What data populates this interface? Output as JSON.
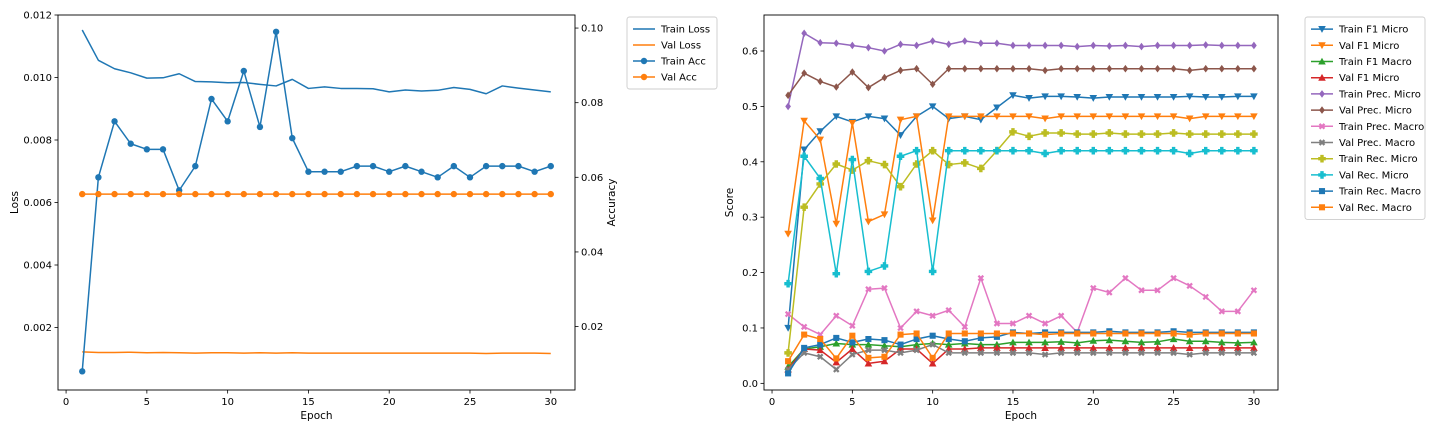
{
  "chart_data": [
    {
      "type": "line",
      "title": "",
      "xlabel": "Epoch",
      "ylabel": "Loss",
      "y2label": "Accuracy",
      "xlim": [
        -0.5,
        31.5
      ],
      "ylim": [
        0,
        0.012
      ],
      "y2lim": [
        0.003,
        0.1035
      ],
      "xticks": [
        0,
        5,
        10,
        15,
        20,
        25,
        30
      ],
      "yticks": [
        0.002,
        0.004,
        0.006,
        0.008,
        0.01,
        0.012
      ],
      "ytick_labels": [
        "0.002",
        "0.004",
        "0.006",
        "0.008",
        "0.010",
        "0.012"
      ],
      "y2ticks": [
        0.02,
        0.04,
        0.06,
        0.08,
        0.1
      ],
      "y2tick_labels": [
        "0.02",
        "0.04",
        "0.06",
        "0.08",
        "0.10"
      ],
      "legend_position": "outside-right",
      "grid": false,
      "x": [
        1,
        2,
        3,
        4,
        5,
        6,
        7,
        8,
        9,
        10,
        11,
        12,
        13,
        14,
        15,
        16,
        17,
        18,
        19,
        20,
        21,
        22,
        23,
        24,
        25,
        26,
        27,
        28,
        29,
        30
      ],
      "series": [
        {
          "name": "Train Loss",
          "axis": "left",
          "color": "#1f77b4",
          "marker": "none",
          "values": [
            0.01152,
            0.01055,
            0.01028,
            0.01015,
            0.00998,
            0.00999,
            0.01012,
            0.00987,
            0.00986,
            0.00983,
            0.00984,
            0.00978,
            0.00973,
            0.00994,
            0.00965,
            0.0097,
            0.00965,
            0.00965,
            0.00964,
            0.00954,
            0.0096,
            0.00957,
            0.00959,
            0.00968,
            0.00962,
            0.00948,
            0.00973,
            0.00966,
            0.0096,
            0.00954
          ]
        },
        {
          "name": "Val Loss",
          "axis": "left",
          "color": "#ff7f0e",
          "marker": "none",
          "values": [
            0.00122,
            0.0012,
            0.0012,
            0.00121,
            0.00119,
            0.0012,
            0.00119,
            0.00118,
            0.00119,
            0.00119,
            0.00118,
            0.00119,
            0.00118,
            0.00119,
            0.00118,
            0.00118,
            0.00118,
            0.00118,
            0.00118,
            0.00118,
            0.00118,
            0.00118,
            0.00118,
            0.00118,
            0.00118,
            0.00117,
            0.00118,
            0.00118,
            0.00118,
            0.00117
          ]
        },
        {
          "name": "Train Acc",
          "axis": "right",
          "color": "#1f77b4",
          "marker": "circle",
          "values": [
            0.008,
            0.06,
            0.075,
            0.069,
            0.0675,
            0.0675,
            0.0565,
            0.063,
            0.081,
            0.075,
            0.0885,
            0.0735,
            0.099,
            0.0705,
            0.0615,
            0.0615,
            0.0615,
            0.063,
            0.063,
            0.0615,
            0.063,
            0.0615,
            0.06,
            0.063,
            0.06,
            0.063,
            0.063,
            0.063,
            0.0615,
            0.063
          ]
        },
        {
          "name": "Val Acc",
          "axis": "right",
          "color": "#ff7f0e",
          "marker": "circle",
          "values": [
            0.0555,
            0.0555,
            0.0555,
            0.0555,
            0.0555,
            0.0555,
            0.0555,
            0.0555,
            0.0555,
            0.0555,
            0.0555,
            0.0555,
            0.0555,
            0.0555,
            0.0555,
            0.0555,
            0.0555,
            0.0555,
            0.0555,
            0.0555,
            0.0555,
            0.0555,
            0.0555,
            0.0555,
            0.0555,
            0.0555,
            0.0555,
            0.0555,
            0.0555,
            0.0555
          ]
        }
      ]
    },
    {
      "type": "line",
      "title": "",
      "xlabel": "Epoch",
      "ylabel": "Score",
      "xlim": [
        -0.5,
        31.5
      ],
      "ylim": [
        -0.012,
        0.665
      ],
      "xticks": [
        0,
        5,
        10,
        15,
        20,
        25,
        30
      ],
      "yticks": [
        0.0,
        0.1,
        0.2,
        0.3,
        0.4,
        0.5,
        0.6
      ],
      "ytick_labels": [
        "0.0",
        "0.1",
        "0.2",
        "0.3",
        "0.4",
        "0.5",
        "0.6"
      ],
      "legend_position": "outside-right",
      "grid": false,
      "x": [
        1,
        2,
        3,
        4,
        5,
        6,
        7,
        8,
        9,
        10,
        11,
        12,
        13,
        14,
        15,
        16,
        17,
        18,
        19,
        20,
        21,
        22,
        23,
        24,
        25,
        26,
        27,
        28,
        29,
        30
      ],
      "series": [
        {
          "name": "Train F1 Micro",
          "color": "#1f77b4",
          "marker": "tri-down",
          "values": [
            0.1,
            0.422,
            0.455,
            0.482,
            0.472,
            0.482,
            0.478,
            0.448,
            0.482,
            0.5,
            0.478,
            0.482,
            0.476,
            0.498,
            0.52,
            0.515,
            0.518,
            0.518,
            0.517,
            0.515,
            0.517,
            0.517,
            0.517,
            0.517,
            0.517,
            0.518,
            0.517,
            0.517,
            0.518,
            0.518
          ]
        },
        {
          "name": "Val F1 Micro",
          "color": "#ff7f0e",
          "marker": "tri-down",
          "values": [
            0.27,
            0.474,
            0.44,
            0.288,
            0.47,
            0.292,
            0.305,
            0.476,
            0.482,
            0.294,
            0.482,
            0.482,
            0.482,
            0.482,
            0.482,
            0.482,
            0.478,
            0.482,
            0.482,
            0.482,
            0.482,
            0.482,
            0.482,
            0.482,
            0.482,
            0.478,
            0.482,
            0.482,
            0.482,
            0.482
          ]
        },
        {
          "name": "Train F1 Macro",
          "color": "#2ca02c",
          "marker": "tri-up",
          "values": [
            0.03,
            0.062,
            0.066,
            0.072,
            0.07,
            0.07,
            0.068,
            0.066,
            0.07,
            0.072,
            0.07,
            0.072,
            0.07,
            0.07,
            0.074,
            0.074,
            0.074,
            0.075,
            0.073,
            0.077,
            0.078,
            0.076,
            0.074,
            0.075,
            0.08,
            0.076,
            0.076,
            0.074,
            0.073,
            0.074
          ]
        },
        {
          "name": "Val F1 Micro",
          "color": "#d62728",
          "marker": "tri-up",
          "values": [
            0.025,
            0.062,
            0.06,
            0.038,
            0.062,
            0.036,
            0.04,
            0.062,
            0.062,
            0.036,
            0.062,
            0.062,
            0.064,
            0.064,
            0.064,
            0.064,
            0.064,
            0.064,
            0.064,
            0.064,
            0.064,
            0.064,
            0.064,
            0.064,
            0.064,
            0.064,
            0.064,
            0.064,
            0.064,
            0.064
          ]
        },
        {
          "name": "Train Prec. Micro",
          "color": "#9467bd",
          "marker": "diamond",
          "values": [
            0.5,
            0.632,
            0.615,
            0.614,
            0.61,
            0.606,
            0.6,
            0.612,
            0.61,
            0.618,
            0.612,
            0.618,
            0.614,
            0.614,
            0.61,
            0.61,
            0.61,
            0.61,
            0.608,
            0.61,
            0.609,
            0.61,
            0.608,
            0.61,
            0.61,
            0.61,
            0.611,
            0.61,
            0.61,
            0.61
          ]
        },
        {
          "name": "Val Prec. Micro",
          "color": "#8c564b",
          "marker": "diamond",
          "values": [
            0.52,
            0.56,
            0.545,
            0.535,
            0.562,
            0.534,
            0.552,
            0.565,
            0.568,
            0.54,
            0.568,
            0.568,
            0.568,
            0.568,
            0.568,
            0.568,
            0.565,
            0.568,
            0.568,
            0.568,
            0.568,
            0.568,
            0.568,
            0.568,
            0.568,
            0.565,
            0.568,
            0.568,
            0.568,
            0.568
          ]
        },
        {
          "name": "Train Prec. Macro",
          "color": "#e377c2",
          "marker": "cross",
          "values": [
            0.125,
            0.102,
            0.088,
            0.122,
            0.104,
            0.17,
            0.172,
            0.1,
            0.13,
            0.122,
            0.132,
            0.102,
            0.19,
            0.108,
            0.108,
            0.122,
            0.108,
            0.122,
            0.092,
            0.172,
            0.164,
            0.19,
            0.168,
            0.168,
            0.19,
            0.176,
            0.156,
            0.13,
            0.13,
            0.168
          ]
        },
        {
          "name": "Val Prec. Macro",
          "color": "#7f7f7f",
          "marker": "cross",
          "values": [
            0.025,
            0.055,
            0.048,
            0.025,
            0.052,
            0.06,
            0.06,
            0.055,
            0.06,
            0.07,
            0.055,
            0.055,
            0.055,
            0.055,
            0.055,
            0.055,
            0.052,
            0.055,
            0.055,
            0.055,
            0.055,
            0.055,
            0.055,
            0.055,
            0.055,
            0.052,
            0.055,
            0.055,
            0.055,
            0.055
          ]
        },
        {
          "name": "Train Rec. Micro",
          "color": "#bcbd22",
          "marker": "plus",
          "values": [
            0.055,
            0.318,
            0.36,
            0.396,
            0.385,
            0.402,
            0.395,
            0.355,
            0.396,
            0.42,
            0.395,
            0.398,
            0.388,
            0.42,
            0.454,
            0.446,
            0.452,
            0.452,
            0.45,
            0.45,
            0.452,
            0.45,
            0.45,
            0.45,
            0.452,
            0.45,
            0.45,
            0.45,
            0.45,
            0.45
          ]
        },
        {
          "name": "Val Rec. Micro",
          "color": "#17becf",
          "marker": "plus",
          "values": [
            0.18,
            0.41,
            0.37,
            0.198,
            0.404,
            0.202,
            0.212,
            0.41,
            0.42,
            0.202,
            0.42,
            0.42,
            0.42,
            0.42,
            0.42,
            0.42,
            0.415,
            0.42,
            0.42,
            0.42,
            0.42,
            0.42,
            0.42,
            0.42,
            0.42,
            0.415,
            0.42,
            0.42,
            0.42,
            0.42
          ]
        },
        {
          "name": "Train Rec. Macro",
          "color": "#1f77b4",
          "marker": "square",
          "values": [
            0.018,
            0.064,
            0.07,
            0.082,
            0.074,
            0.08,
            0.078,
            0.07,
            0.08,
            0.086,
            0.08,
            0.076,
            0.082,
            0.084,
            0.092,
            0.09,
            0.092,
            0.092,
            0.092,
            0.092,
            0.094,
            0.092,
            0.092,
            0.092,
            0.094,
            0.092,
            0.092,
            0.092,
            0.092,
            0.092
          ]
        },
        {
          "name": "Val Rec. Macro",
          "color": "#ff7f0e",
          "marker": "square",
          "values": [
            0.04,
            0.088,
            0.08,
            0.045,
            0.086,
            0.046,
            0.048,
            0.088,
            0.09,
            0.046,
            0.09,
            0.09,
            0.09,
            0.09,
            0.09,
            0.09,
            0.088,
            0.09,
            0.09,
            0.09,
            0.09,
            0.09,
            0.09,
            0.09,
            0.09,
            0.088,
            0.09,
            0.09,
            0.09,
            0.09
          ]
        }
      ]
    }
  ]
}
